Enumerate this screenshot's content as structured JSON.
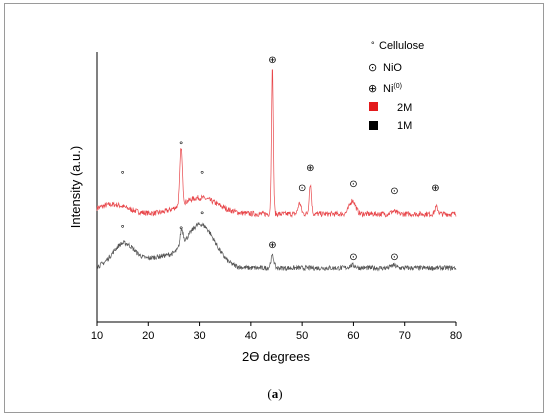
{
  "chart_data": {
    "type": "line",
    "xlabel": "2ϴ degrees",
    "ylabel": "Intensity (a.u.)",
    "xlim": [
      10,
      80
    ],
    "xticks": [
      10,
      20,
      30,
      40,
      50,
      60,
      70,
      80
    ],
    "grid": false,
    "legend_position": "top-right",
    "legend": [
      {
        "symbol": "°",
        "label": "Cellulose"
      },
      {
        "symbol": "⊙",
        "label": "NiO"
      },
      {
        "symbol": "⊕",
        "label": "Ni",
        "superscript": "(0)"
      },
      {
        "swatch_color": "#e31a1c",
        "label": "2M"
      },
      {
        "swatch_color": "#000000",
        "label": "1M"
      }
    ],
    "series": [
      {
        "name": "2M",
        "color": "#e8474b",
        "baseline": 0.4,
        "noise": 0.01,
        "peaks": [
          {
            "x": 13,
            "h": 0.035,
            "w": 3.0
          },
          {
            "x": 26.4,
            "h": 0.21,
            "w": 0.25
          },
          {
            "x": 30,
            "h": 0.06,
            "w": 3.5
          },
          {
            "x": 44.2,
            "h": 0.54,
            "w": 0.18
          },
          {
            "x": 49.5,
            "h": 0.04,
            "w": 0.3
          },
          {
            "x": 51.6,
            "h": 0.11,
            "w": 0.22
          },
          {
            "x": 59.8,
            "h": 0.05,
            "w": 0.6
          },
          {
            "x": 67.8,
            "h": 0.01,
            "w": 0.5
          },
          {
            "x": 76.2,
            "h": 0.025,
            "w": 0.3
          }
        ]
      },
      {
        "name": "1M",
        "color": "#555555",
        "baseline": 0.2,
        "noise": 0.009,
        "peaks": [
          {
            "x": 15.2,
            "h": 0.09,
            "w": 2.2
          },
          {
            "x": 22.5,
            "h": 0.04,
            "w": 3.0
          },
          {
            "x": 26.5,
            "h": 0.06,
            "w": 0.3
          },
          {
            "x": 30.2,
            "h": 0.16,
            "w": 2.8
          },
          {
            "x": 44.2,
            "h": 0.045,
            "w": 0.3
          },
          {
            "x": 59.8,
            "h": 0.01,
            "w": 0.6
          },
          {
            "x": 67.8,
            "h": 0.01,
            "w": 0.5
          }
        ]
      }
    ],
    "annotations": [
      {
        "x": 15,
        "y": 0.535,
        "symbol": "°",
        "series": "2M"
      },
      {
        "x": 26.4,
        "y": 0.645,
        "symbol": "°",
        "series": "2M"
      },
      {
        "x": 30.5,
        "y": 0.535,
        "symbol": "°",
        "series": "2M"
      },
      {
        "x": 44.2,
        "y": 0.96,
        "symbol": "⊕",
        "series": "2M"
      },
      {
        "x": 50,
        "y": 0.485,
        "symbol": "⊙",
        "series": "2M"
      },
      {
        "x": 51.6,
        "y": 0.56,
        "symbol": "⊕",
        "series": "2M"
      },
      {
        "x": 60,
        "y": 0.5,
        "symbol": "⊙",
        "series": "2M"
      },
      {
        "x": 68,
        "y": 0.475,
        "symbol": "⊙",
        "series": "2M"
      },
      {
        "x": 76,
        "y": 0.485,
        "symbol": "⊕",
        "series": "2M"
      },
      {
        "x": 15,
        "y": 0.335,
        "symbol": "°",
        "series": "1M"
      },
      {
        "x": 26.4,
        "y": 0.33,
        "symbol": "°",
        "series": "1M"
      },
      {
        "x": 30.5,
        "y": 0.385,
        "symbol": "°",
        "series": "1M"
      },
      {
        "x": 44.2,
        "y": 0.275,
        "symbol": "⊕",
        "series": "1M"
      },
      {
        "x": 60,
        "y": 0.23,
        "symbol": "⊙",
        "series": "1M"
      },
      {
        "x": 68,
        "y": 0.23,
        "symbol": "⊙",
        "series": "1M"
      }
    ]
  },
  "caption": {
    "prefix": "(",
    "label": "a",
    "suffix": ")"
  }
}
